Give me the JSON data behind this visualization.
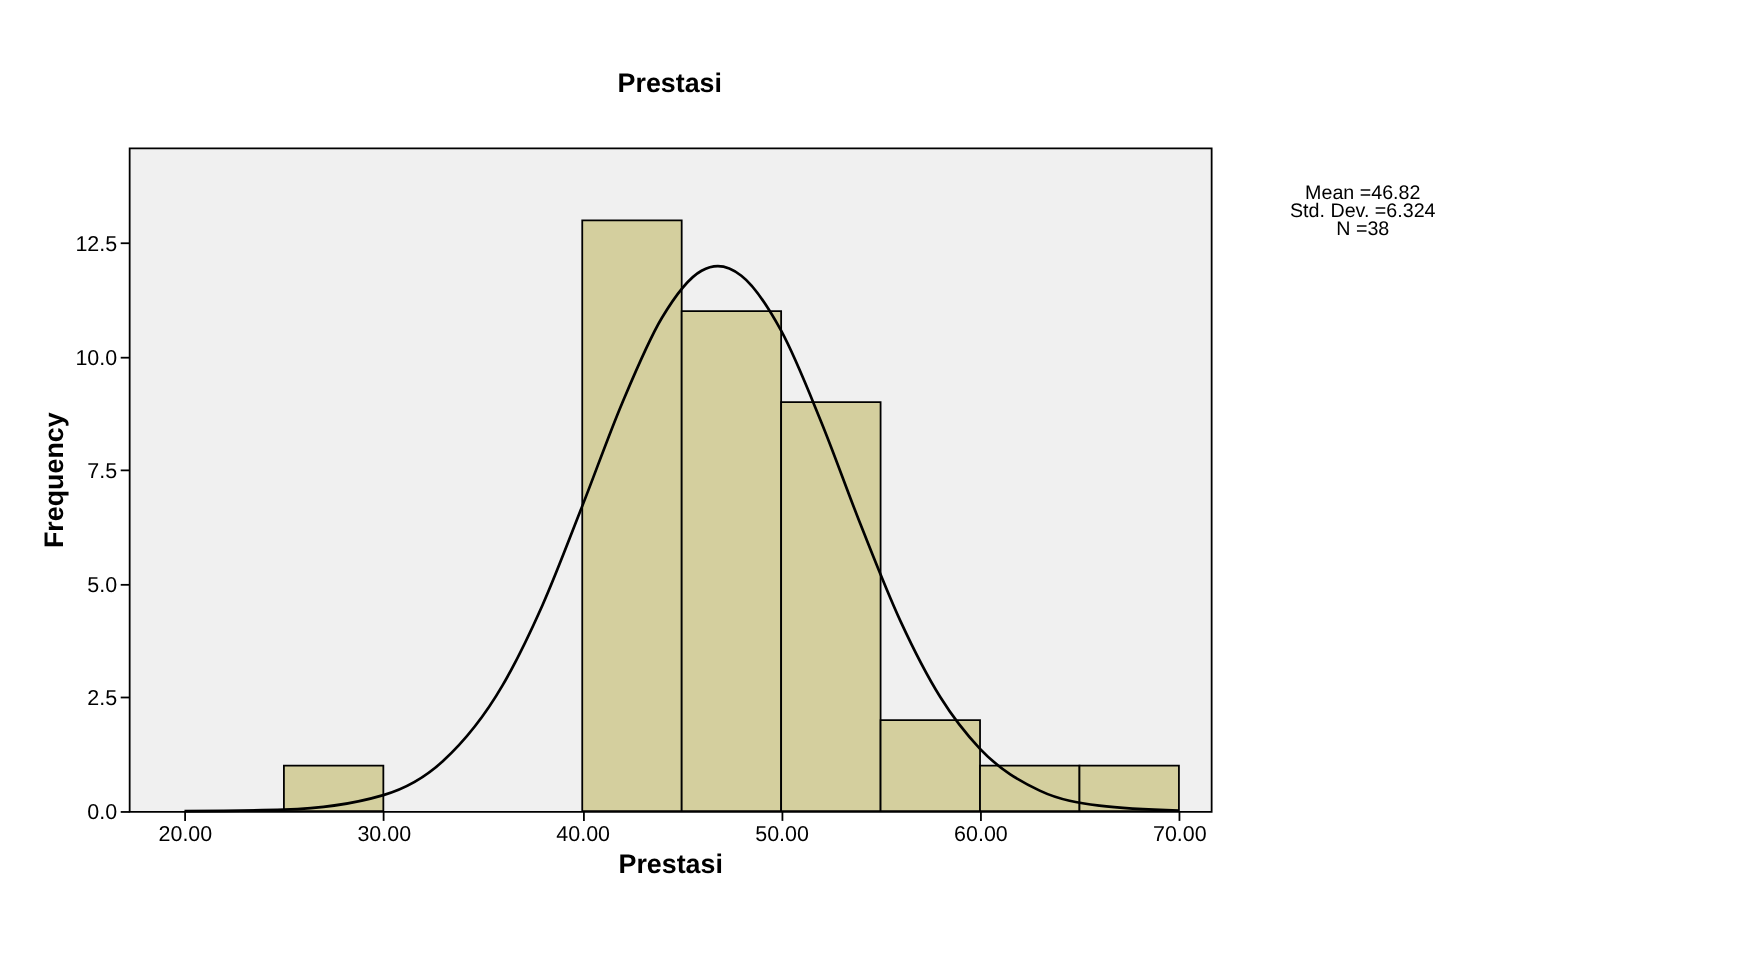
{
  "chart_data": {
    "type": "histogram",
    "title": "Prestasi",
    "xlabel": "Prestasi",
    "ylabel": "Frequency",
    "bins": [
      25,
      30,
      35,
      40,
      45,
      50,
      55,
      60,
      65,
      70
    ],
    "values": [
      1,
      0,
      0,
      13,
      11,
      9,
      2,
      1,
      1
    ],
    "color": "#d4cf9e",
    "series": [
      {
        "type": "line",
        "color": "#000000",
        "x": [
          20,
          25,
          30,
          33,
          36,
          38,
          40,
          42,
          44,
          46,
          46.82,
          48,
          50,
          52,
          54,
          56,
          58,
          60,
          63,
          66,
          70
        ],
        "values": [
          0.0,
          0.03,
          0.35,
          1.1,
          2.77,
          4.53,
          6.71,
          8.97,
          10.85,
          11.89,
          11.99,
          11.78,
          10.57,
          8.58,
          6.3,
          4.18,
          2.51,
          1.37,
          0.45,
          0.12,
          0.01
        ]
      }
    ],
    "xlim": [
      17.2,
      71.6
    ],
    "xticks": [
      {
        "value": 20,
        "label": "20.00"
      },
      {
        "value": 30,
        "label": "30.00"
      },
      {
        "value": 40,
        "label": "40.00"
      },
      {
        "value": 50,
        "label": "50.00"
      },
      {
        "value": 60,
        "label": "60.00"
      },
      {
        "value": 70,
        "label": "70.00"
      }
    ],
    "ylim": [
      0,
      14.6
    ],
    "yticks": [
      {
        "value": 0,
        "label": "0.0"
      },
      {
        "value": 2.5,
        "label": "2.5"
      },
      {
        "value": 5,
        "label": "5.0"
      },
      {
        "value": 7.5,
        "label": "7.5"
      },
      {
        "value": 10,
        "label": "10.0"
      },
      {
        "value": 12.5,
        "label": "12.5"
      }
    ],
    "annotations": [
      "Mean =46.82",
      "Std. Dev. =6.324",
      "N =38"
    ],
    "grid": false
  }
}
